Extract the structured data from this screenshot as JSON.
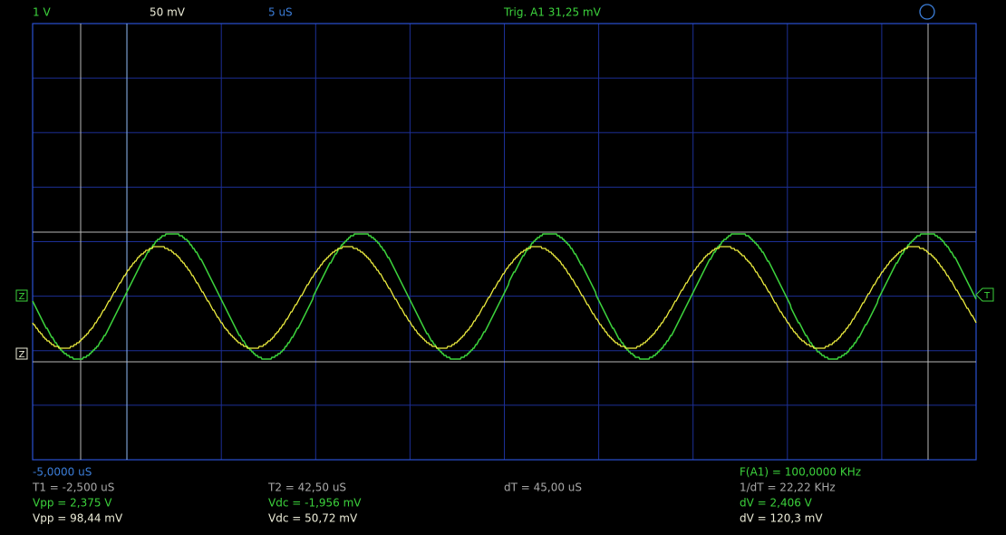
{
  "header": {
    "channel_a_scale": "1 V",
    "channel_b_scale": "50 mV",
    "timebase": "5 uS",
    "trigger": "Trig. A1  31,25 mV"
  },
  "markers": {
    "channel_a": "Z",
    "channel_b": "Z",
    "trigger": "T"
  },
  "readout": {
    "offset": "-5,0000 uS",
    "frequency": "F(A1) = 100,0000 KHz",
    "t1": "T1 = -2,500 uS",
    "t2": "T2 = 42,50 uS",
    "dt": "dT = 45,00 uS",
    "inv_dt": "1/dT = 22,22 KHz",
    "a_vpp": "Vpp = 2,375 V",
    "a_vdc": "Vdc = -1,956 mV",
    "a_dv": "dV = 2,406 V",
    "b_vpp": "Vpp = 98,44 mV",
    "b_vdc": "Vdc = 50,72 mV",
    "b_dv": "dV = 120,3 mV"
  }
}
